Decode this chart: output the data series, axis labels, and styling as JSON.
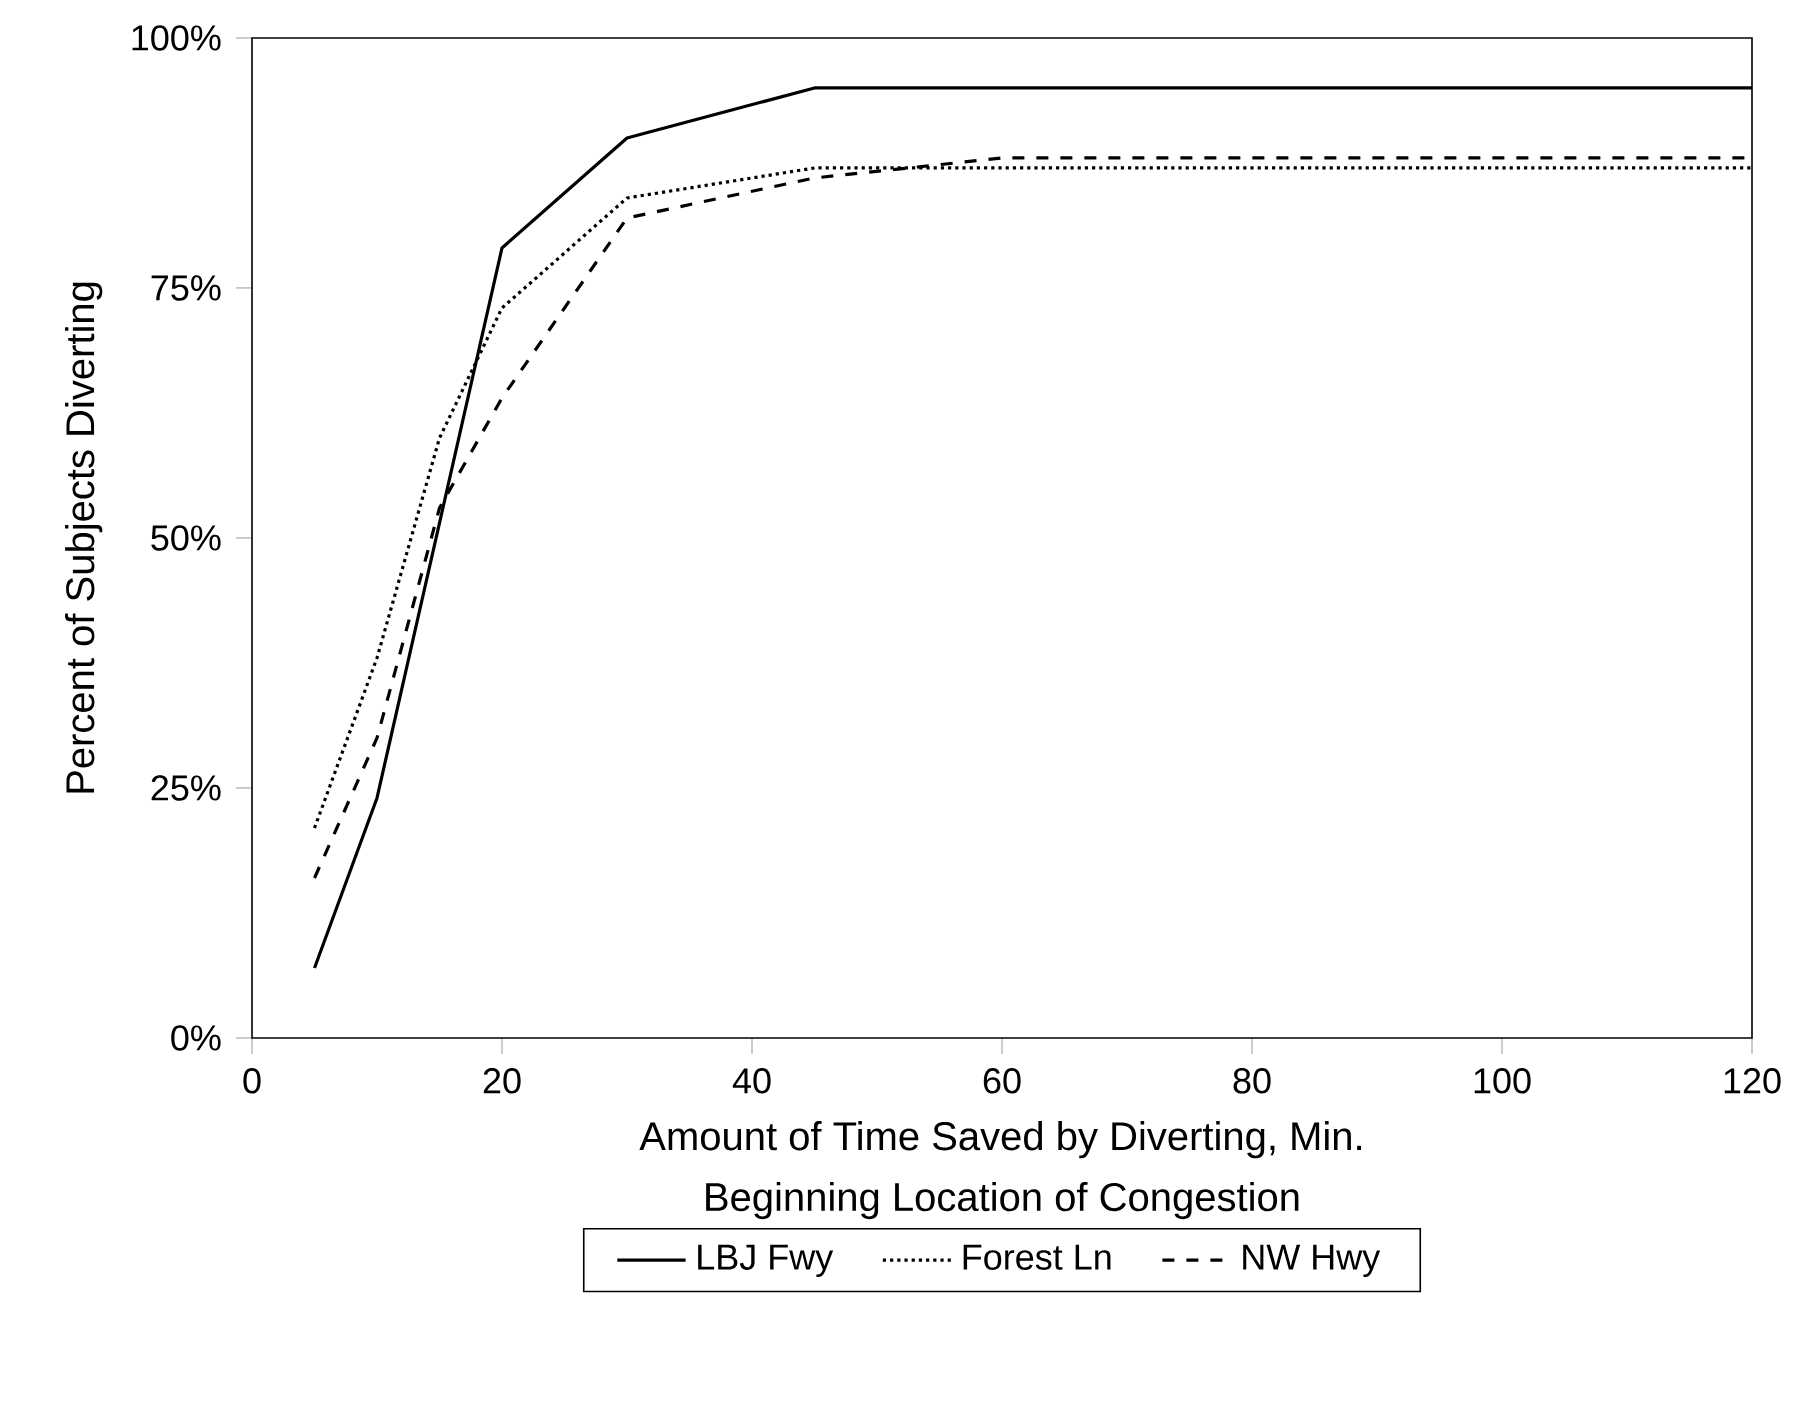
{
  "chart_data": {
    "type": "line",
    "xlabel": "Amount of Time Saved by Diverting, Min.",
    "ylabel": "Percent of Subjects Diverting",
    "legend_title": "Beginning Location of Congestion",
    "legend": "bottom",
    "grid": false,
    "xlim": [
      0,
      120
    ],
    "xticks": [
      0,
      20,
      40,
      60,
      80,
      100,
      120
    ],
    "ylim": [
      0,
      100
    ],
    "yticks": [
      {
        "value": 0,
        "label": "0%"
      },
      {
        "value": 25,
        "label": "25%"
      },
      {
        "value": 50,
        "label": "50%"
      },
      {
        "value": 75,
        "label": "75%"
      },
      {
        "value": 100,
        "label": "100%"
      }
    ],
    "series": [
      {
        "name": "LBJ Fwy",
        "color": "#000000",
        "line_style": "solid",
        "x": [
          5,
          10,
          20,
          30,
          45,
          60,
          120
        ],
        "values": [
          7,
          24,
          79,
          90,
          95,
          95,
          95
        ]
      },
      {
        "name": "Forest Ln",
        "color": "#000000",
        "line_style": "dotted",
        "x": [
          5,
          10,
          15,
          20,
          30,
          45,
          60,
          120
        ],
        "values": [
          21,
          38,
          60,
          73,
          84,
          87,
          87,
          87
        ]
      },
      {
        "name": "NW Hwy",
        "color": "#000000",
        "line_style": "dashed",
        "x": [
          5,
          10,
          15,
          20,
          30,
          45,
          60,
          120
        ],
        "values": [
          16,
          30,
          53,
          64,
          82,
          86,
          88,
          88
        ]
      }
    ]
  }
}
